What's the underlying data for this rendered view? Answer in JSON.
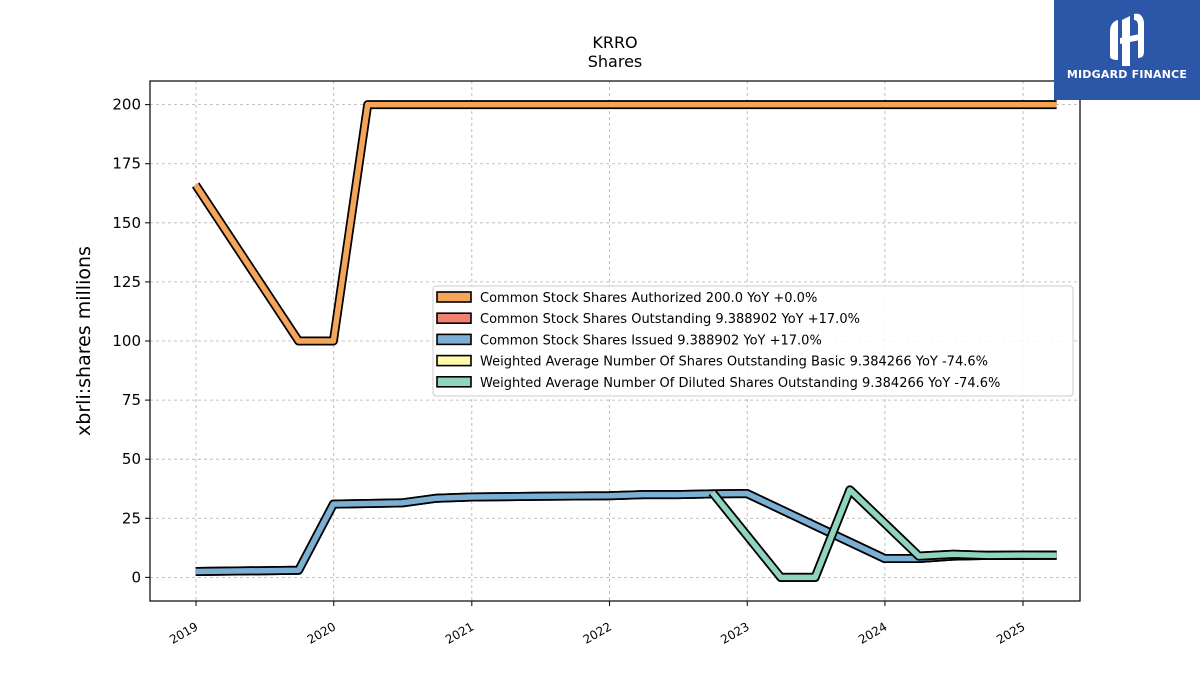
{
  "chart_data": {
    "type": "line",
    "title": "KRRO",
    "subtitle": "Shares",
    "xlabel": "",
    "ylabel": "xbrli:shares millions",
    "x_ticks": [
      "2019",
      "2020",
      "2021",
      "2022",
      "2023",
      "2024",
      "2025"
    ],
    "y_ticks": [
      "0",
      "25",
      "50",
      "75",
      "100",
      "125",
      "150",
      "175",
      "200"
    ],
    "xlim": [
      "2018-09",
      "2025-06"
    ],
    "ylim": [
      -10,
      210
    ],
    "grid": true,
    "legend_position": "center-right",
    "series": [
      {
        "name": "Common Stock Shares Authorized",
        "legend_label": "Common Stock Shares Authorized  200.0 YoY +0.0%",
        "color": "#f5a55a",
        "x": [
          "2018-12-31",
          "2019-09-30",
          "2019-12-31",
          "2020-03-31",
          "2020-06-30",
          "2020-09-30",
          "2020-12-31",
          "2021-03-31",
          "2021-06-30",
          "2021-09-30",
          "2021-12-31",
          "2022-03-31",
          "2022-06-30",
          "2022-09-30",
          "2022-12-31",
          "2023-03-31",
          "2023-06-30",
          "2023-09-30",
          "2023-12-31",
          "2024-03-31",
          "2024-06-30",
          "2024-09-30",
          "2024-12-31",
          "2025-03-31"
        ],
        "values": [
          166,
          100,
          100,
          200,
          200,
          200,
          200,
          200,
          200,
          200,
          200,
          200,
          200,
          200,
          200,
          200,
          200,
          200,
          200,
          200,
          200,
          200,
          200,
          200
        ]
      },
      {
        "name": "Common Stock Shares Outstanding",
        "legend_label": "Common Stock Shares Outstanding  9.388902 YoY +17.0%",
        "color": "#f08070",
        "x": [
          "2018-12-31",
          "2019-09-30",
          "2019-12-31",
          "2020-06-30",
          "2020-09-30",
          "2020-12-31",
          "2021-06-30",
          "2021-12-31",
          "2022-03-31",
          "2022-06-30",
          "2022-09-30",
          "2022-12-31",
          "2023-12-31",
          "2024-03-31",
          "2024-06-30",
          "2024-09-30",
          "2024-12-31",
          "2025-03-31"
        ],
        "values": [
          2.5,
          3,
          31,
          31.5,
          33.5,
          34,
          34.3,
          34.5,
          35,
          35,
          35.3,
          35.5,
          8,
          8,
          9,
          9.3,
          9.3,
          9.4
        ]
      },
      {
        "name": "Common Stock Shares Issued",
        "legend_label": "Common Stock Shares Issued  9.388902 YoY +17.0%",
        "color": "#7bafd4",
        "x": [
          "2018-12-31",
          "2019-09-30",
          "2019-12-31",
          "2020-06-30",
          "2020-09-30",
          "2020-12-31",
          "2021-06-30",
          "2021-12-31",
          "2022-03-31",
          "2022-06-30",
          "2022-09-30",
          "2022-12-31",
          "2023-12-31",
          "2024-03-31",
          "2024-06-30",
          "2024-09-30",
          "2024-12-31",
          "2025-03-31"
        ],
        "values": [
          2.5,
          3,
          31,
          31.5,
          33.5,
          34,
          34.3,
          34.5,
          35,
          35,
          35.3,
          35.5,
          8,
          8,
          9,
          9.3,
          9.3,
          9.4
        ]
      },
      {
        "name": "Weighted Average Number Of Shares Outstanding Basic",
        "legend_label": "Weighted Average Number Of Shares Outstanding Basic  9.384266 YoY -74.6%",
        "color": "#fff9a8",
        "x": [
          "2022-09-30",
          "2023-03-31",
          "2023-06-30",
          "2023-09-30",
          "2024-03-31",
          "2024-06-30",
          "2024-09-30",
          "2024-12-31",
          "2025-03-31"
        ],
        "values": [
          36,
          0,
          0,
          37,
          9,
          9.8,
          9.3,
          9.4,
          9.38
        ]
      },
      {
        "name": "Weighted Average Number Of Diluted Shares Outstanding",
        "legend_label": "Weighted Average Number Of Diluted Shares Outstanding  9.384266 YoY -74.6%",
        "color": "#8fd3c1",
        "x": [
          "2022-09-30",
          "2023-03-31",
          "2023-06-30",
          "2023-09-30",
          "2024-03-31",
          "2024-06-30",
          "2024-09-30",
          "2024-12-31",
          "2025-03-31"
        ],
        "values": [
          36,
          0,
          0,
          37,
          9,
          9.8,
          9.3,
          9.4,
          9.38
        ]
      }
    ]
  },
  "logo": {
    "text": "MIDGARD FINANCE",
    "color": "#2c56a8"
  }
}
